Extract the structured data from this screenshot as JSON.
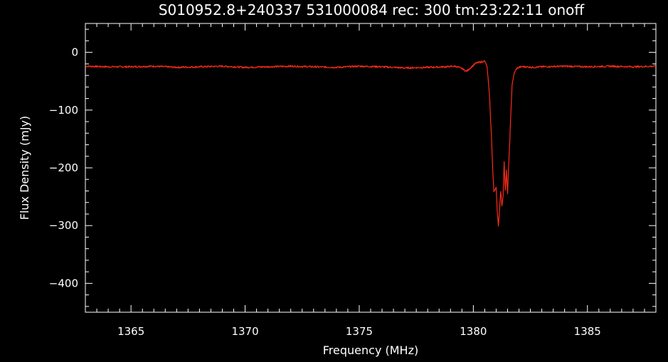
{
  "colors": {
    "background": "#000000",
    "axes": "#ffffff",
    "series": "#ff2a1a"
  },
  "chart_data": {
    "type": "line",
    "title": "S010952.8+240337 531000084 rec: 300 tm:23:22:11 onoff",
    "xlabel": "Frequency (MHz)",
    "ylabel": "Flux Density (mJy)",
    "xlim": [
      1363.0,
      1388.0
    ],
    "ylim": [
      -450,
      50
    ],
    "xticks": [
      1365,
      1370,
      1375,
      1380,
      1385
    ],
    "xtick_labels": [
      "1365",
      "1370",
      "1375",
      "1380",
      "1385"
    ],
    "xminor_step": 0.5,
    "yticks": [
      0,
      -100,
      -200,
      -300,
      -400
    ],
    "ytick_labels": [
      "0",
      "−100",
      "−200",
      "−300",
      "−400"
    ],
    "yminor_step": 20,
    "grid": false,
    "legend": "none",
    "series": [
      {
        "x": [
          1363.0,
          1364.0,
          1365.0,
          1366.0,
          1367.0,
          1368.0,
          1369.0,
          1370.0,
          1371.0,
          1372.0,
          1373.0,
          1374.0,
          1375.0,
          1376.0,
          1377.0,
          1378.0,
          1378.8,
          1379.2,
          1379.5,
          1379.7,
          1379.9,
          1380.1,
          1380.3,
          1380.5,
          1380.6,
          1380.7,
          1380.8,
          1380.85,
          1380.9,
          1381.0,
          1381.05,
          1381.1,
          1381.15,
          1381.2,
          1381.25,
          1381.3,
          1381.35,
          1381.4,
          1381.45,
          1381.5,
          1381.55,
          1381.6,
          1381.65,
          1381.7,
          1381.8,
          1381.9,
          1382.0,
          1382.1,
          1382.3,
          1382.6,
          1383.0,
          1384.0,
          1385.0,
          1386.0,
          1387.0,
          1388.0
        ],
        "y": [
          -24,
          -25,
          -25,
          -24,
          -26,
          -25,
          -24,
          -26,
          -25,
          -24,
          -25,
          -26,
          -24,
          -25,
          -27,
          -26,
          -25,
          -24,
          -28,
          -33,
          -26,
          -19,
          -17,
          -15,
          -25,
          -70,
          -150,
          -205,
          -240,
          -235,
          -275,
          -300,
          -270,
          -240,
          -265,
          -250,
          -190,
          -240,
          -205,
          -245,
          -195,
          -150,
          -100,
          -55,
          -35,
          -28,
          -26,
          -25,
          -25,
          -26,
          -25,
          -24,
          -25,
          -24,
          -25,
          -24
        ]
      }
    ]
  }
}
